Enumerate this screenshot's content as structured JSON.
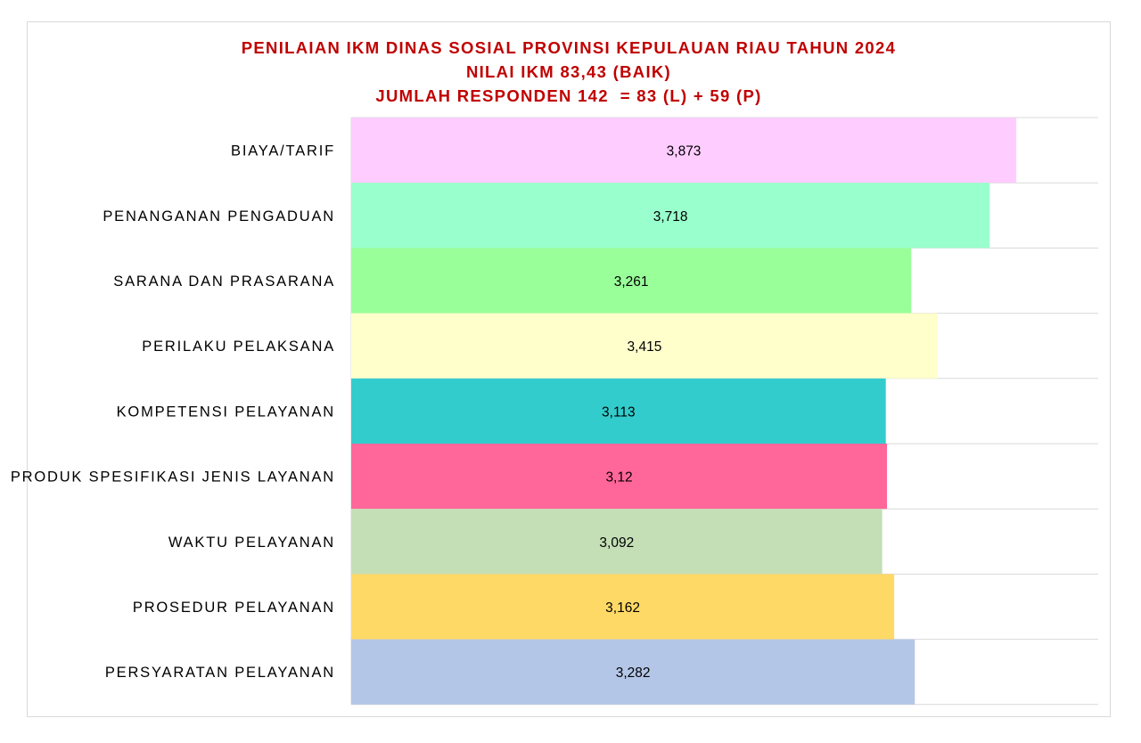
{
  "chart_data": {
    "type": "bar",
    "orientation": "horizontal",
    "title": "PENILAIAN IKM DINAS SOSIAL PROVINSI KEPULAUAN RIAU TAHUN 2024",
    "subtitle_lines": [
      "NILAI IKM 83,43 (BAIK)",
      "JUMLAH RESPONDEN 142  = 83 (L) + 59 (P)"
    ],
    "xlim": [
      0,
      4.35
    ],
    "grid": "horizontal lines between bars",
    "legend": "none",
    "categories": [
      "BIAYA/TARIF",
      "PENANGANAN PENGADUAN",
      "SARANA DAN PRASARANA",
      "PERILAKU PELAKSANA",
      "KOMPETENSI PELAYANAN",
      "PRODUK SPESIFIKASI JENIS LAYANAN",
      "WAKTU PELAYANAN ",
      "PROSEDUR PELAYANAN",
      "PERSYARATAN PELAYANAN"
    ],
    "values": [
      3.873,
      3.718,
      3.261,
      3.415,
      3.113,
      3.12,
      3.092,
      3.162,
      3.282
    ],
    "value_labels": [
      "3,873",
      "3,718",
      "3,261",
      "3,415",
      "3,113",
      "3,12",
      "3,092",
      "3,162",
      "3,282"
    ],
    "colors": [
      "#ffccff",
      "#99ffcc",
      "#99ff99",
      "#ffffcc",
      "#33cccc",
      "#ff6699",
      "#c4dfb6",
      "#ffd966",
      "#b4c6e7"
    ]
  },
  "colors": {
    "title": "#c00000",
    "gridline": "#d9d9d9",
    "frame_border": "#d9d9d9"
  }
}
